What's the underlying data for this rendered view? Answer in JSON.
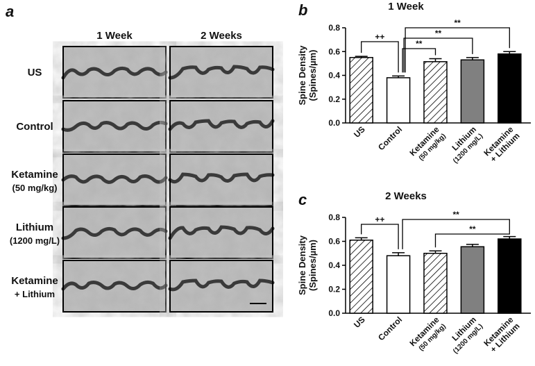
{
  "panel_a": {
    "panel_label": "a",
    "columns": [
      "1 Week",
      "2 Weeks"
    ],
    "rows": [
      [
        "US"
      ],
      [
        "Control"
      ],
      [
        "Ketamine",
        "(50 mg/kg)"
      ],
      [
        "Lithium",
        "(1200 mg/L)"
      ],
      [
        "Ketamine",
        "+ Lithium"
      ]
    ]
  },
  "chart_data": [
    {
      "type": "bar",
      "panel_label": "b",
      "title": "1 Week",
      "ylabel": [
        "Spine Density",
        "(Spines/µm)"
      ],
      "categories": [
        "US",
        "Control",
        "Ketamine",
        "Lithium",
        "Ketamine"
      ],
      "sublabels": [
        null,
        null,
        "(50 mg/kg)",
        "(1200 mg/L)",
        "+ Lithium"
      ],
      "values": [
        0.55,
        0.38,
        0.515,
        0.53,
        0.58
      ],
      "errors": [
        0.01,
        0.015,
        0.025,
        0.02,
        0.02
      ],
      "fills": [
        "hatch",
        "#ffffff",
        "hatch",
        "#808080",
        "#000000"
      ],
      "ylim": [
        0,
        0.8
      ],
      "yticks": [
        {
          "value": 0,
          "label": "0.0"
        },
        0.2,
        0.4,
        0.6,
        0.8
      ],
      "annotations": [
        {
          "from": 0,
          "to": 1,
          "label": "++"
        },
        {
          "from": 1,
          "to": 2,
          "label": "**"
        },
        {
          "from": 1,
          "to": 3,
          "label": "**"
        },
        {
          "from": 1,
          "to": 4,
          "label": "**"
        }
      ]
    },
    {
      "type": "bar",
      "panel_label": "c",
      "title": "2 Weeks",
      "ylabel": [
        "Spine Density",
        "(Spines/µm)"
      ],
      "categories": [
        "US",
        "Control",
        "Ketamine",
        "Lithium",
        "Ketamine"
      ],
      "sublabels": [
        null,
        null,
        "(50 mg/kg)",
        "(1200 mg/L)",
        "+ Lithium"
      ],
      "values": [
        0.61,
        0.48,
        0.5,
        0.555,
        0.62
      ],
      "errors": [
        0.02,
        0.025,
        0.02,
        0.02,
        0.02
      ],
      "fills": [
        "hatch",
        "#ffffff",
        "hatch",
        "#808080",
        "#000000"
      ],
      "ylim": [
        0,
        0.8
      ],
      "yticks": [
        {
          "value": 0,
          "label": "0.0"
        },
        0.2,
        0.4,
        0.6,
        0.8
      ],
      "annotations": [
        {
          "from": 0,
          "to": 1,
          "label": "++"
        },
        {
          "from": 1,
          "to": 4,
          "label": "**"
        },
        {
          "from": 2,
          "to": 4,
          "label": "**"
        }
      ]
    }
  ]
}
